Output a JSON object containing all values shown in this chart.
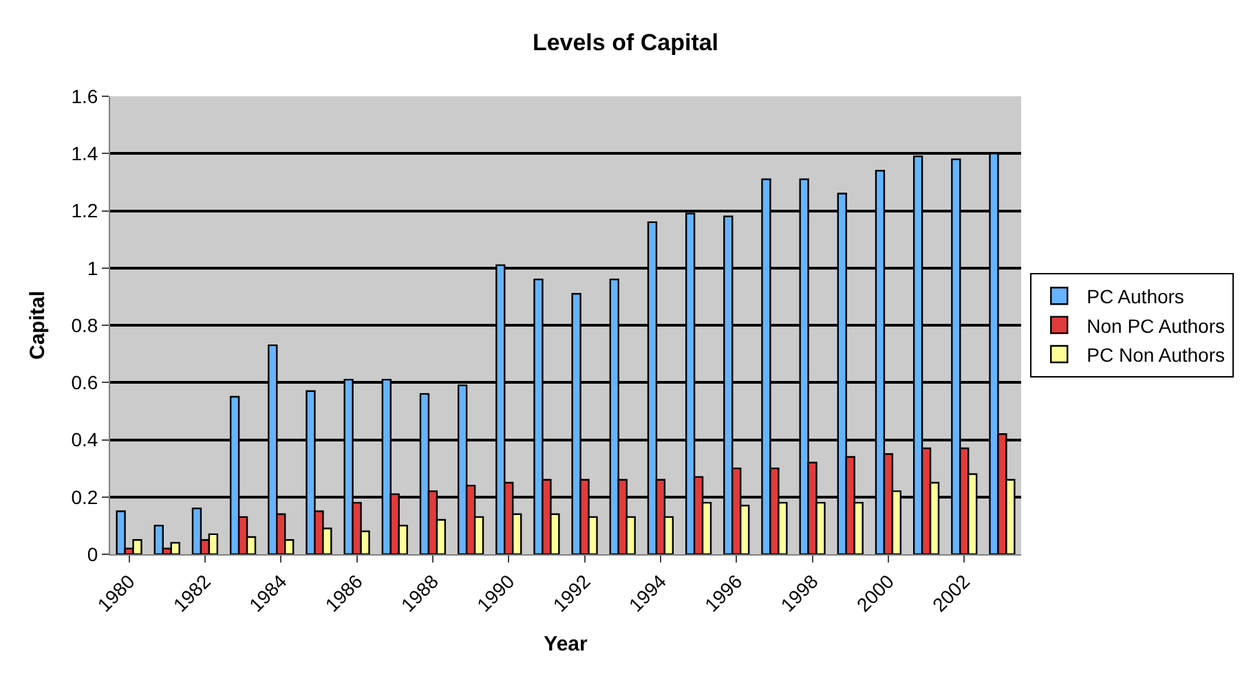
{
  "chart_data": {
    "type": "bar",
    "title": "Levels of Capital",
    "xlabel": "Year",
    "ylabel": "Capital",
    "categories": [
      "1980",
      null,
      "1982",
      null,
      "1984",
      null,
      "1986",
      null,
      "1988",
      null,
      "1990",
      null,
      "1992",
      null,
      "1994",
      null,
      "1996",
      null,
      "1998",
      null,
      "2000",
      null,
      "2002",
      null
    ],
    "series": [
      {
        "name": "PC Authors",
        "color": "#66b3ff",
        "values": [
          0.15,
          0.1,
          0.16,
          0.55,
          0.73,
          0.57,
          0.61,
          0.61,
          0.56,
          0.59,
          1.01,
          0.96,
          0.91,
          0.96,
          1.16,
          1.19,
          1.18,
          1.31,
          1.31,
          1.26,
          1.34,
          1.39,
          1.38,
          1.4
        ]
      },
      {
        "name": "Non PC Authors",
        "color": "#e03c3c",
        "values": [
          0.02,
          0.02,
          0.05,
          0.13,
          0.14,
          0.15,
          0.18,
          0.21,
          0.22,
          0.24,
          0.25,
          0.26,
          0.26,
          0.26,
          0.26,
          0.27,
          0.3,
          0.3,
          0.32,
          0.34,
          0.35,
          0.37,
          0.37,
          0.42
        ]
      },
      {
        "name": "PC Non Authors",
        "color": "#ffff99",
        "values": [
          0.05,
          0.04,
          0.07,
          0.06,
          0.05,
          0.09,
          0.08,
          0.1,
          0.12,
          0.13,
          0.14,
          0.14,
          0.13,
          0.13,
          0.13,
          0.18,
          0.17,
          0.18,
          0.18,
          0.18,
          0.22,
          0.25,
          0.28,
          0.26
        ]
      }
    ],
    "ylim": [
      0,
      1.6
    ],
    "yticks": [
      0,
      0.2,
      0.4,
      0.6,
      0.8,
      1,
      1.2,
      1.4,
      1.6
    ],
    "grid": "y",
    "legend": "right"
  }
}
